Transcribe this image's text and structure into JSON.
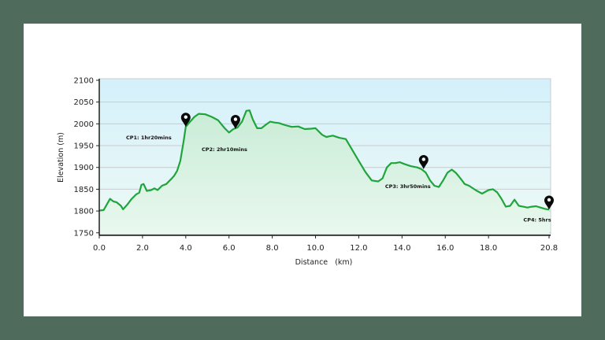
{
  "chart_data": {
    "type": "area",
    "title": "",
    "xlabel": "Distance   (km)",
    "ylabel": "Elevation (m)",
    "xlim": [
      0.0,
      20.8
    ],
    "ylim": [
      1750,
      2100
    ],
    "x_ticks": [
      "0.0",
      "2.0",
      "4.0",
      "6.0",
      "8.0",
      "10.0",
      "12.0",
      "14.0",
      "16.0",
      "18.0",
      "20.8"
    ],
    "x_tick_values": [
      0,
      2,
      4,
      6,
      8,
      10,
      12,
      14,
      16,
      18,
      20.8
    ],
    "y_ticks": [
      "2100",
      "2050",
      "2000",
      "1950",
      "1900",
      "1850",
      "1800",
      "1750"
    ],
    "y_tick_values": [
      2100,
      2050,
      2000,
      1950,
      1900,
      1850,
      1800,
      1750
    ],
    "grid": "horizontal",
    "legend": "none",
    "series": [
      {
        "name": "Elevation profile",
        "color": "#1fa53c",
        "x": [
          0.0,
          0.2,
          0.35,
          0.5,
          0.65,
          0.8,
          1.0,
          1.1,
          1.3,
          1.5,
          1.7,
          1.85,
          1.95,
          2.05,
          2.2,
          2.4,
          2.55,
          2.7,
          2.9,
          3.1,
          3.3,
          3.45,
          3.6,
          3.75,
          3.9,
          4.0,
          4.2,
          4.4,
          4.6,
          4.9,
          5.2,
          5.5,
          5.8,
          6.0,
          6.2,
          6.4,
          6.6,
          6.8,
          6.95,
          7.1,
          7.3,
          7.5,
          7.7,
          7.9,
          8.1,
          8.3,
          8.6,
          8.9,
          9.2,
          9.5,
          9.8,
          10.0,
          10.3,
          10.5,
          10.8,
          11.1,
          11.4,
          11.7,
          12.0,
          12.3,
          12.6,
          12.9,
          13.1,
          13.3,
          13.5,
          13.7,
          13.9,
          14.1,
          14.4,
          14.7,
          14.9,
          15.1,
          15.3,
          15.5,
          15.7,
          15.9,
          16.1,
          16.3,
          16.5,
          16.7,
          16.9,
          17.1,
          17.4,
          17.7,
          18.0,
          18.2,
          18.4,
          18.6,
          18.8,
          19.0,
          19.2,
          19.4,
          19.6,
          19.8,
          20.0,
          20.2,
          20.4,
          20.6,
          20.8
        ],
        "values": [
          1801,
          1802,
          1815,
          1828,
          1822,
          1820,
          1812,
          1804,
          1815,
          1828,
          1838,
          1842,
          1860,
          1862,
          1846,
          1848,
          1852,
          1848,
          1858,
          1862,
          1872,
          1880,
          1892,
          1915,
          1960,
          1993,
          2005,
          2016,
          2023,
          2022,
          2016,
          2008,
          1990,
          1980,
          1988,
          1992,
          2005,
          2030,
          2031,
          2010,
          1990,
          1990,
          1998,
          2005,
          2003,
          2002,
          1997,
          1993,
          1994,
          1988,
          1989,
          1990,
          1975,
          1970,
          1973,
          1968,
          1965,
          1940,
          1915,
          1890,
          1870,
          1868,
          1875,
          1900,
          1910,
          1910,
          1912,
          1908,
          1903,
          1900,
          1896,
          1888,
          1870,
          1858,
          1855,
          1870,
          1888,
          1895,
          1887,
          1875,
          1862,
          1858,
          1848,
          1840,
          1848,
          1850,
          1843,
          1828,
          1810,
          1812,
          1826,
          1812,
          1810,
          1808,
          1810,
          1811,
          1808,
          1805,
          1803
        ]
      }
    ],
    "annotations": [
      {
        "label": "CP1: 1hr20mins",
        "x": 4.0,
        "y": 1993,
        "marker": "map-pin"
      },
      {
        "label": "CP2: 2hr10mins",
        "x": 6.3,
        "y": 1988,
        "marker": "map-pin"
      },
      {
        "label": "CP3: 3hr50mins",
        "x": 15.0,
        "y": 1896,
        "marker": "map-pin"
      },
      {
        "label": "CP4: 5hrs",
        "x": 20.8,
        "y": 1803,
        "marker": "map-pin"
      }
    ]
  },
  "colors": {
    "frame": "#4f6b5b",
    "panel": "#ffffff",
    "line": "#1fa53c",
    "plot_top": "#d4f0fb",
    "plot_bottom": "#eefaf5",
    "fill_top": "#c9ecd6",
    "fill_bottom": "#e9f8ef",
    "grid": "#c8ccd0",
    "pin": "#0a0a0a"
  }
}
